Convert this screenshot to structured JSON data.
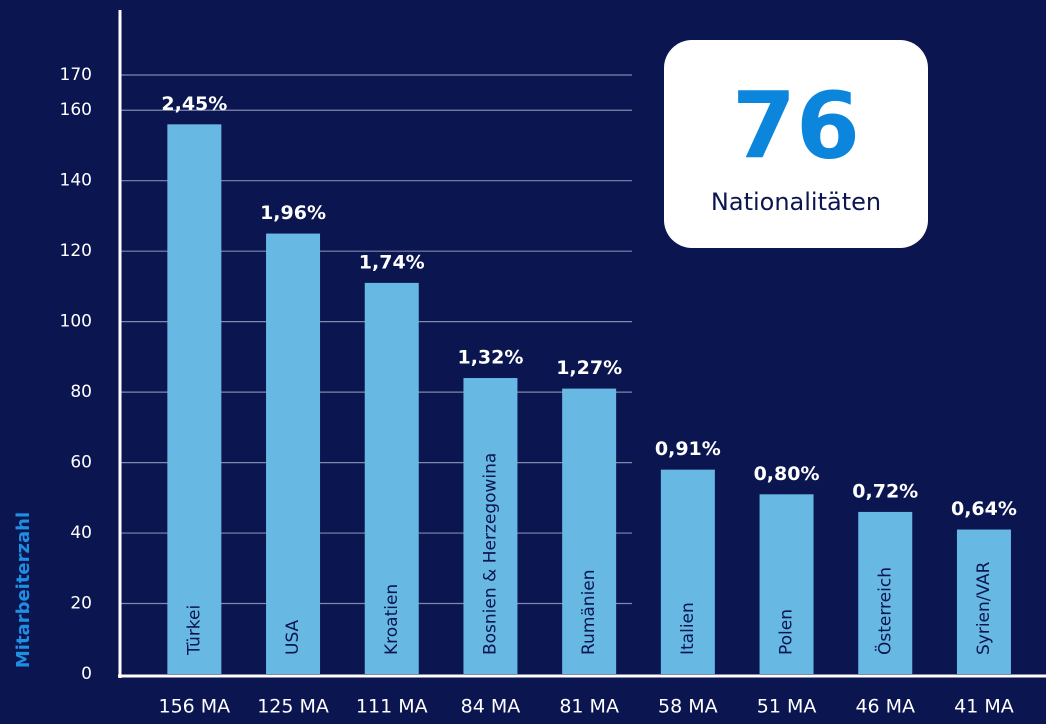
{
  "chart_data": {
    "type": "bar",
    "y_axis_label": "Mitarbeiterzahl",
    "categories": [
      "Türkei",
      "USA",
      "Kroatien",
      "Bosnien & Herzegowina",
      "Rumänien",
      "Italien",
      "Polen",
      "Österreich",
      "Syrien/VAR"
    ],
    "values": [
      156,
      125,
      111,
      84,
      81,
      58,
      51,
      46,
      41
    ],
    "value_labels": [
      "156 MA",
      "125 MA",
      "111 MA",
      "84 MA",
      "81 MA",
      "58 MA",
      "51 MA",
      "46 MA",
      "41 MA"
    ],
    "share_labels": [
      "2,45%",
      "1,96%",
      "1,74%",
      "1,32%",
      "1,27%",
      "0,91%",
      "0,80%",
      "0,72%",
      "0,64%"
    ],
    "color": "#67b8e3",
    "ylim": [
      0,
      170
    ],
    "yticks": [
      0,
      20,
      40,
      60,
      80,
      100,
      120,
      140,
      160,
      170
    ],
    "grid": true,
    "callout": {
      "value": "76",
      "label": "Nationalitäten"
    }
  }
}
